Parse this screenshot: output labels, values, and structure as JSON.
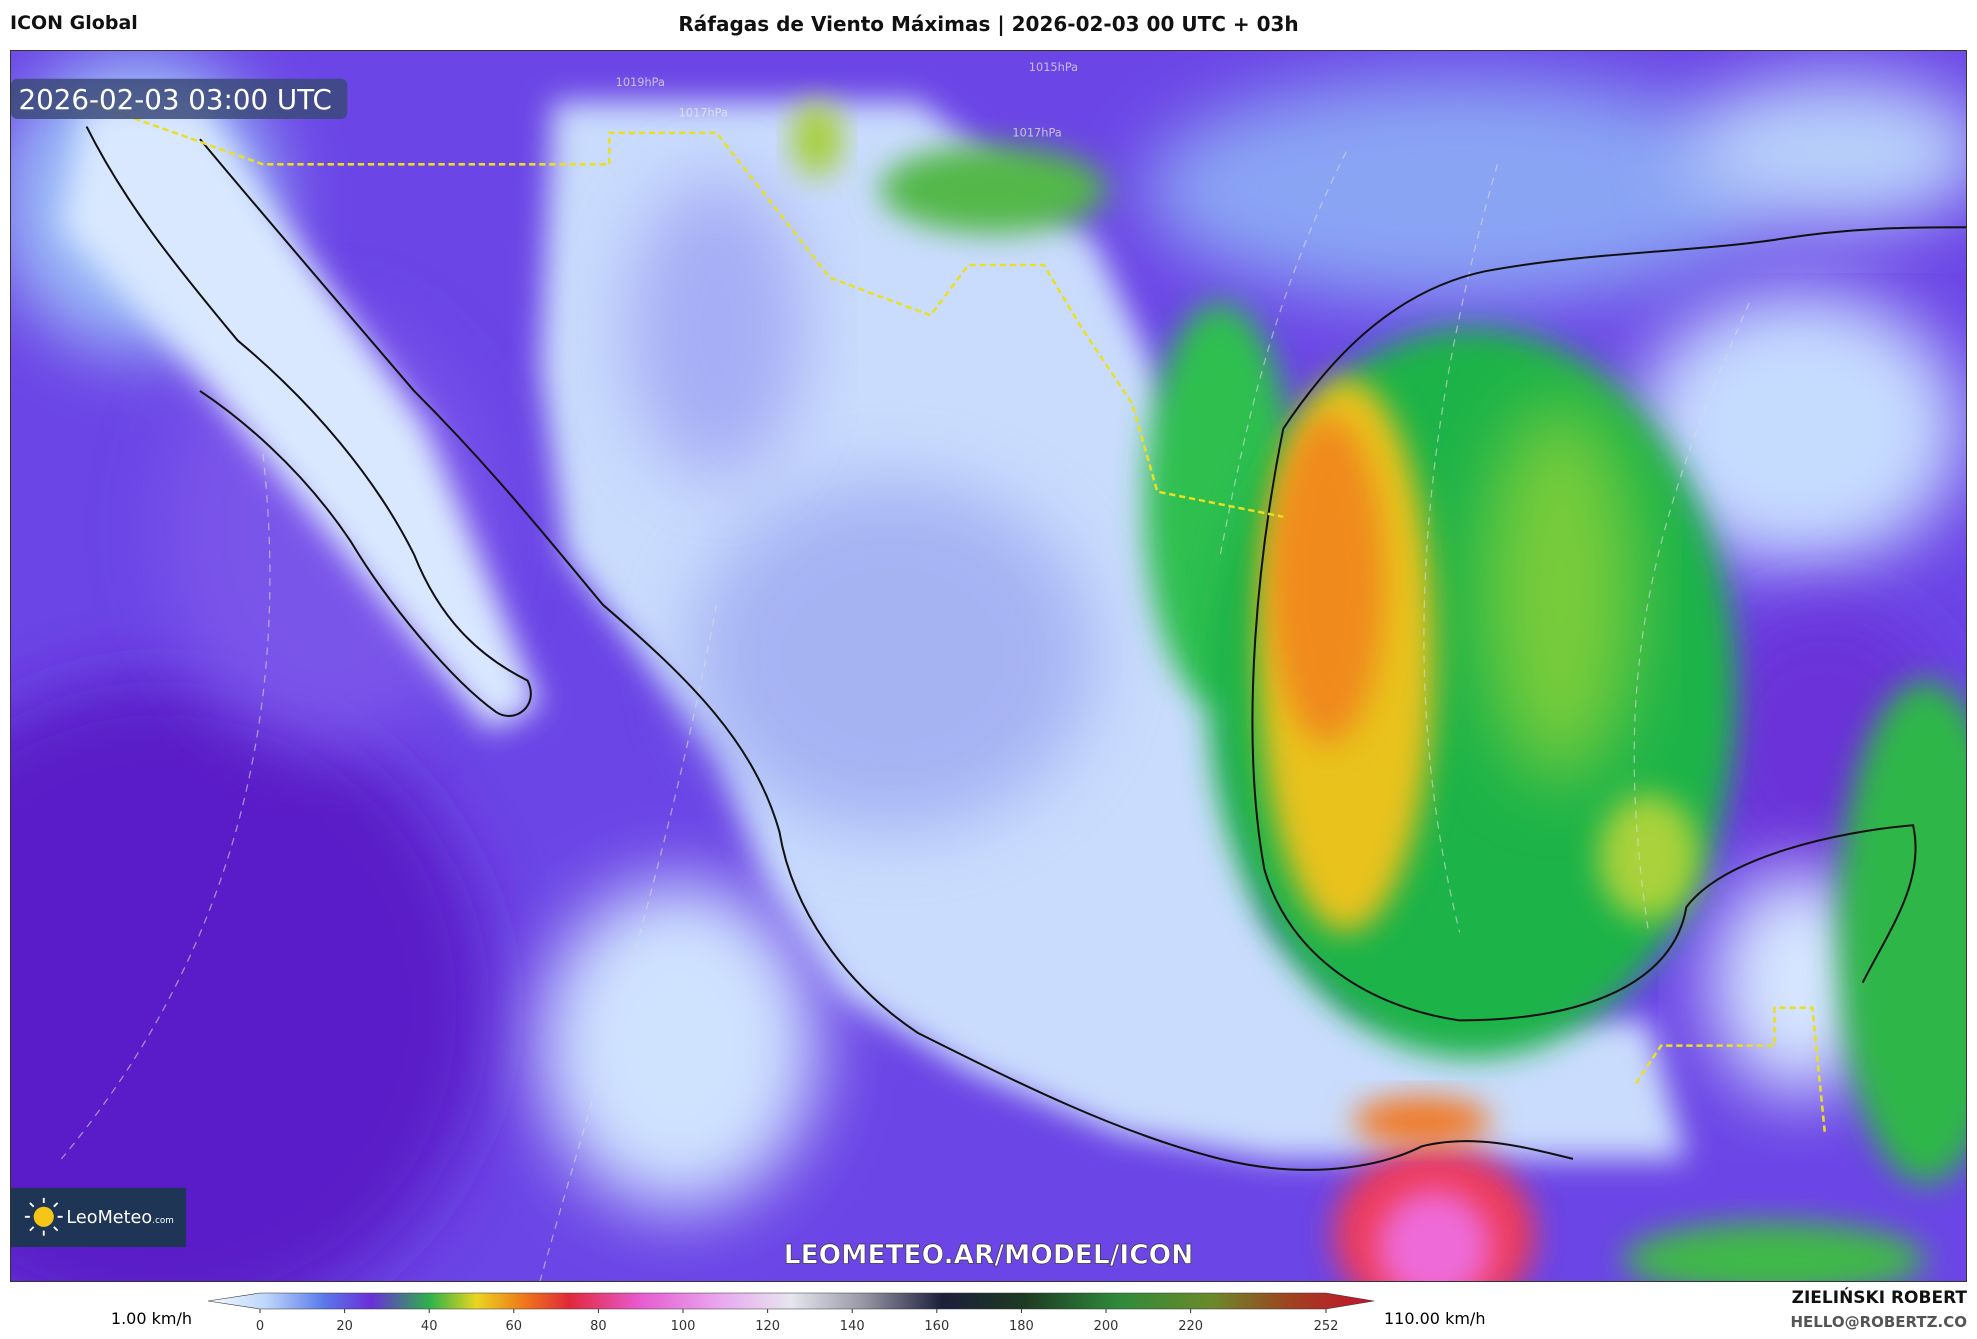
{
  "header": {
    "left": "ICON Global",
    "title": "Ráfagas de Viento Máximas | 2026-02-03 00 UTC + 03h"
  },
  "map": {
    "timestamp": "2026-02-03 03:00 UTC",
    "watermark": "LEOMETEO.AR/MODEL/ICON",
    "logo": "LeoMeteo",
    "logo_suffix": ".com",
    "isobar_labels": [
      "1019hPa",
      "1017hPa",
      "1015hPa",
      "1017hPa"
    ]
  },
  "colorbar": {
    "min_label": "1.00 km/h",
    "max_label": "110.00 km/h",
    "ticks": [
      0,
      20,
      40,
      60,
      80,
      100,
      120,
      140,
      160,
      180,
      200,
      220,
      252
    ]
  },
  "footer": {
    "author": "ZIELIŃSKI ROBERT",
    "email": "HELLO@ROBERTZ.CO"
  }
}
